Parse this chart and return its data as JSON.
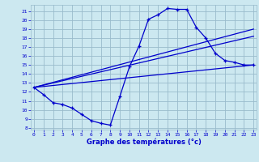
{
  "title": "Graphe des températures (°c)",
  "bg_color": "#cce8f0",
  "line_color": "#0000cc",
  "grid_color": "#99bbcc",
  "x_ticks": [
    0,
    1,
    2,
    3,
    4,
    5,
    6,
    7,
    8,
    9,
    10,
    11,
    12,
    13,
    14,
    15,
    16,
    17,
    18,
    19,
    20,
    21,
    22,
    23
  ],
  "y_ticks": [
    8,
    9,
    10,
    11,
    12,
    13,
    14,
    15,
    16,
    17,
    18,
    19,
    20,
    21
  ],
  "xlim": [
    -0.3,
    23.3
  ],
  "ylim": [
    7.8,
    21.7
  ],
  "curve_x": [
    0,
    1,
    2,
    3,
    4,
    5,
    6,
    7,
    8,
    9,
    10,
    11,
    12,
    13,
    14,
    15,
    16,
    17,
    18,
    19,
    20,
    21,
    22,
    23
  ],
  "curve_y": [
    12.5,
    11.7,
    10.8,
    10.6,
    10.2,
    9.5,
    8.8,
    8.5,
    8.3,
    11.5,
    14.8,
    17.1,
    20.1,
    20.6,
    21.3,
    21.2,
    21.2,
    19.2,
    18.0,
    16.3,
    15.5,
    15.3,
    15.0,
    15.0
  ],
  "line2_x": [
    0,
    23
  ],
  "line2_y": [
    12.5,
    19.0
  ],
  "line3_x": [
    0,
    23
  ],
  "line3_y": [
    12.5,
    18.2
  ],
  "line4_x": [
    0,
    23
  ],
  "line4_y": [
    12.5,
    15.0
  ]
}
